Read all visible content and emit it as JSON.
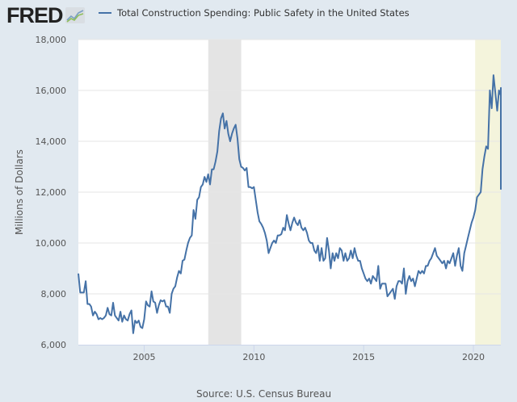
{
  "header": {
    "logo_text": "FRED",
    "legend_label": "Total Construction Spending: Public Safety in the United States",
    "icons": [
      "fred-logo-icon",
      "chart-badge-icon"
    ]
  },
  "source": "Source: U.S. Census Bureau",
  "colors": {
    "line": "#4572a7",
    "recession": "#e4e4e4",
    "highlight": "#f4f4dc",
    "background": "#e1e9f0",
    "plot": "#ffffff",
    "grid": "#e6e6e6"
  },
  "chart_data": {
    "type": "line",
    "title": "Total Construction Spending: Public Safety in the United States",
    "xlabel": "",
    "ylabel": "Millions of Dollars",
    "xlim": [
      2002.0,
      2021.25
    ],
    "ylim": [
      6000,
      18000
    ],
    "yticks": [
      6000,
      8000,
      10000,
      12000,
      14000,
      16000,
      18000
    ],
    "ytick_labels": [
      "6,000",
      "8,000",
      "10,000",
      "12,000",
      "14,000",
      "16,000",
      "18,000"
    ],
    "xticks": [
      2005,
      2010,
      2015,
      2020
    ],
    "xtick_labels": [
      "2005",
      "2010",
      "2015",
      "2020"
    ],
    "grid": true,
    "shaded_regions": [
      {
        "start": 2007.92,
        "end": 2009.42,
        "kind": "recession"
      },
      {
        "start": 2020.08,
        "end": 2021.25,
        "kind": "highlight"
      }
    ],
    "series": [
      {
        "name": "Total Construction Spending: Public Safety in the United States",
        "start": 2002.0,
        "step": 0.08333,
        "values": [
          8800,
          8050,
          8050,
          8050,
          8500,
          7600,
          7600,
          7500,
          7150,
          7300,
          7200,
          7000,
          7050,
          7000,
          7050,
          7150,
          7450,
          7200,
          7150,
          7650,
          7150,
          7050,
          6950,
          7300,
          6900,
          7150,
          7000,
          6950,
          7200,
          7350,
          6450,
          6950,
          6850,
          6950,
          6700,
          6650,
          7000,
          7700,
          7550,
          7500,
          8100,
          7700,
          7650,
          7250,
          7550,
          7750,
          7700,
          7750,
          7500,
          7500,
          7250,
          8000,
          8200,
          8300,
          8650,
          8900,
          8800,
          9300,
          9350,
          9700,
          10000,
          10200,
          10300,
          11300,
          10950,
          11700,
          11800,
          12200,
          12300,
          12600,
          12400,
          12700,
          12300,
          12900,
          12900,
          13200,
          13600,
          14400,
          14900,
          15100,
          14500,
          14800,
          14300,
          14000,
          14300,
          14500,
          14650,
          14100,
          13300,
          13000,
          12950,
          12850,
          12950,
          12200,
          12200,
          12150,
          12200,
          11700,
          11200,
          10850,
          10750,
          10600,
          10400,
          10100,
          9600,
          9800,
          10000,
          10100,
          10000,
          10300,
          10300,
          10350,
          10600,
          10500,
          11100,
          10750,
          10500,
          10800,
          11000,
          10800,
          10700,
          10900,
          10600,
          10500,
          10600,
          10400,
          10100,
          10000,
          10000,
          9700,
          9600,
          9900,
          9300,
          9800,
          9300,
          9400,
          10200,
          9700,
          9000,
          9600,
          9300,
          9600,
          9400,
          9800,
          9700,
          9300,
          9600,
          9300,
          9400,
          9700,
          9400,
          9800,
          9500,
          9300,
          9300,
          9000,
          8800,
          8600,
          8500,
          8600,
          8400,
          8700,
          8600,
          8500,
          9100,
          8200,
          8400,
          8400,
          8400,
          7900,
          8000,
          8100,
          8200,
          7800,
          8300,
          8500,
          8500,
          8400,
          9000,
          8000,
          8500,
          8700,
          8500,
          8600,
          8300,
          8600,
          8900,
          8800,
          8900,
          8800,
          9100,
          9100,
          9300,
          9400,
          9600,
          9800,
          9500,
          9400,
          9300,
          9200,
          9300,
          9000,
          9300,
          9200,
          9400,
          9600,
          9100,
          9500,
          9800,
          9100,
          8900,
          9600,
          9900,
          10200,
          10500,
          10800,
          11000,
          11300,
          11800,
          11900,
          12000,
          12900,
          13400,
          13800,
          13700,
          16000,
          15300,
          16600,
          15900,
          15200,
          16000,
          15800,
          15900,
          16100,
          16100,
          15900,
          14000,
          12100
        ]
      }
    ]
  }
}
